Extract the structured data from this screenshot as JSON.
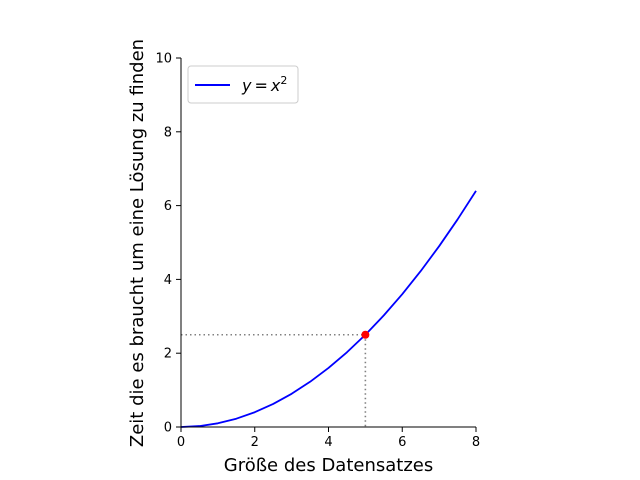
{
  "chart_data": {
    "type": "line",
    "title": "",
    "xlabel": "Größe des Datensatzes",
    "ylabel": "Zeit die es braucht um eine Lösung zu finden",
    "xlim": [
      0,
      8
    ],
    "ylim": [
      0,
      10
    ],
    "xticks": [
      "0",
      "2",
      "4",
      "6",
      "8"
    ],
    "yticks": [
      "0",
      "2",
      "4",
      "6",
      "8",
      "10"
    ],
    "grid": false,
    "legend_position": "top-left",
    "series": [
      {
        "name_var": "y",
        "name_eq": "=",
        "name_base": "x",
        "name_exp": "2",
        "color": "#0000ff",
        "x": [
          0,
          0.5,
          1,
          1.5,
          2,
          2.5,
          3,
          3.5,
          4,
          4.5,
          5,
          5.5,
          6,
          6.5,
          7,
          7.5,
          8
        ],
        "y": [
          0,
          0.025,
          0.1,
          0.225,
          0.4,
          0.625,
          0.9,
          1.225,
          1.6,
          2.025,
          2.5,
          3.025,
          3.6,
          4.225,
          4.9,
          5.625,
          6.4
        ]
      }
    ],
    "highlight_point": {
      "x": 5,
      "y": 2.5,
      "color": "#ff0000"
    },
    "guide_line_color": "#808080"
  }
}
